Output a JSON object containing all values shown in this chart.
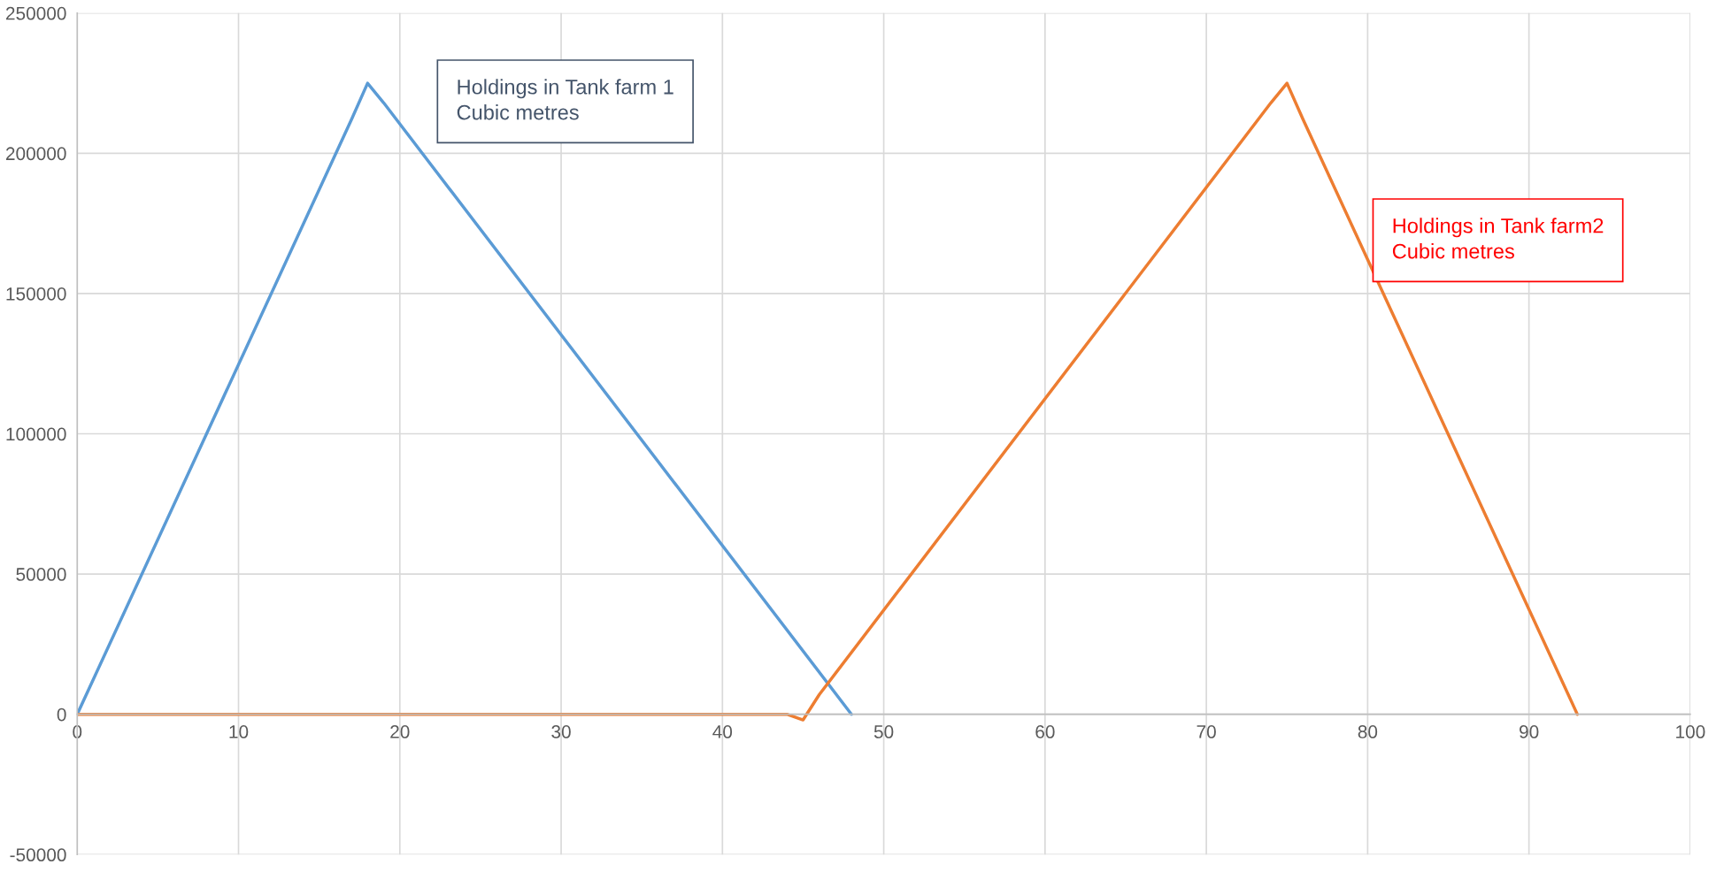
{
  "chart_data": {
    "type": "line",
    "series": [
      {
        "color": "#5b9bd5",
        "x": [
          0,
          17,
          18,
          19,
          48
        ],
        "values": [
          0,
          212000,
          225000,
          218000,
          0
        ]
      },
      {
        "color": "#ed7d31",
        "x": [
          0,
          44,
          45,
          46,
          74,
          75,
          76,
          93
        ],
        "values": [
          0,
          0,
          -2000,
          7000,
          218000,
          225000,
          212000,
          0
        ]
      }
    ],
    "annotations": [
      "Holdings in Tank farm 1\nCubic metres",
      "Holdings in Tank farm2\nCubic metres"
    ],
    "xlim": [
      0,
      100
    ],
    "xticks": [
      0,
      10,
      20,
      30,
      40,
      50,
      60,
      70,
      80,
      90,
      100
    ],
    "ylim": [
      -50000,
      250000
    ],
    "yticks": [
      -50000,
      0,
      50000,
      100000,
      150000,
      200000,
      250000
    ],
    "grid": true,
    "legend": false,
    "marker": "none",
    "line_style": "solid"
  }
}
